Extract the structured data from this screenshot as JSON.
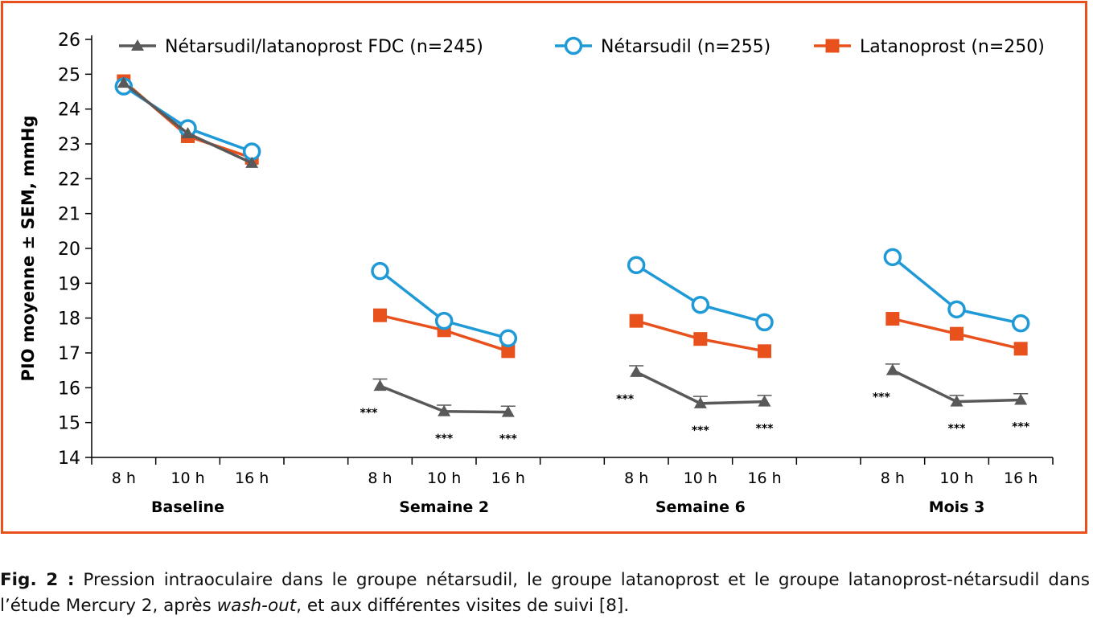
{
  "chart_data": {
    "type": "line",
    "ylabel": "PIO moyenne ± SEM, mmHg",
    "xlabel": "",
    "ylim": [
      14,
      26
    ],
    "yticks": [
      14,
      15,
      16,
      17,
      18,
      19,
      20,
      21,
      22,
      23,
      24,
      25,
      26
    ],
    "grid": false,
    "legend_position": "top",
    "groups": [
      {
        "label": "Baseline",
        "ticks": [
          "8 h",
          "10 h",
          "16 h"
        ]
      },
      {
        "label": "Semaine 2",
        "ticks": [
          "8 h",
          "10 h",
          "16 h"
        ]
      },
      {
        "label": "Semaine 6",
        "ticks": [
          "8 h",
          "10 h",
          "16 h"
        ]
      },
      {
        "label": "Mois 3",
        "ticks": [
          "8 h",
          "10 h",
          "16 h"
        ]
      }
    ],
    "series": [
      {
        "name": "Nétarsudil/latanoprost FDC (n=245)",
        "color": "#595959",
        "marker": "triangle",
        "values": [
          [
            24.75,
            23.3,
            22.45
          ],
          [
            16.05,
            15.32,
            15.3
          ],
          [
            16.45,
            15.55,
            15.6
          ],
          [
            16.5,
            15.6,
            15.65
          ]
        ],
        "sem": [
          [
            0,
            0,
            0
          ],
          [
            0.2,
            0.18,
            0.17
          ],
          [
            0.18,
            0.2,
            0.18
          ],
          [
            0.18,
            0.18,
            0.18
          ]
        ]
      },
      {
        "name": "Nétarsudil (n=255)",
        "color": "#1f9ad6",
        "marker": "open-circle",
        "values": [
          [
            24.65,
            23.45,
            22.78
          ],
          [
            19.35,
            17.92,
            17.42
          ],
          [
            19.52,
            18.38,
            17.88
          ],
          [
            19.75,
            18.25,
            17.85
          ]
        ]
      },
      {
        "name": "Latanoprost (n=250)",
        "color": "#e8501c",
        "marker": "square",
        "values": [
          [
            24.8,
            23.22,
            22.6
          ],
          [
            18.08,
            17.65,
            17.05
          ],
          [
            17.92,
            17.4,
            17.05
          ],
          [
            17.98,
            17.55,
            17.12
          ]
        ]
      }
    ],
    "annotations": {
      "text": "***",
      "points": [
        [
          1,
          0
        ],
        [
          1,
          1
        ],
        [
          1,
          2
        ],
        [
          2,
          0
        ],
        [
          2,
          1
        ],
        [
          2,
          2
        ],
        [
          3,
          0
        ],
        [
          3,
          1
        ],
        [
          3,
          2
        ]
      ]
    }
  },
  "caption": {
    "label": "Fig. 2 :",
    "text_before": " Pression intraoculaire dans le groupe nétarsudil, le groupe latanoprost et le groupe latanoprost-nétarsudil dans l’étude Mercury 2, après ",
    "italic": "wash-out",
    "text_after": ", et aux différentes visites de suivi [8]."
  }
}
